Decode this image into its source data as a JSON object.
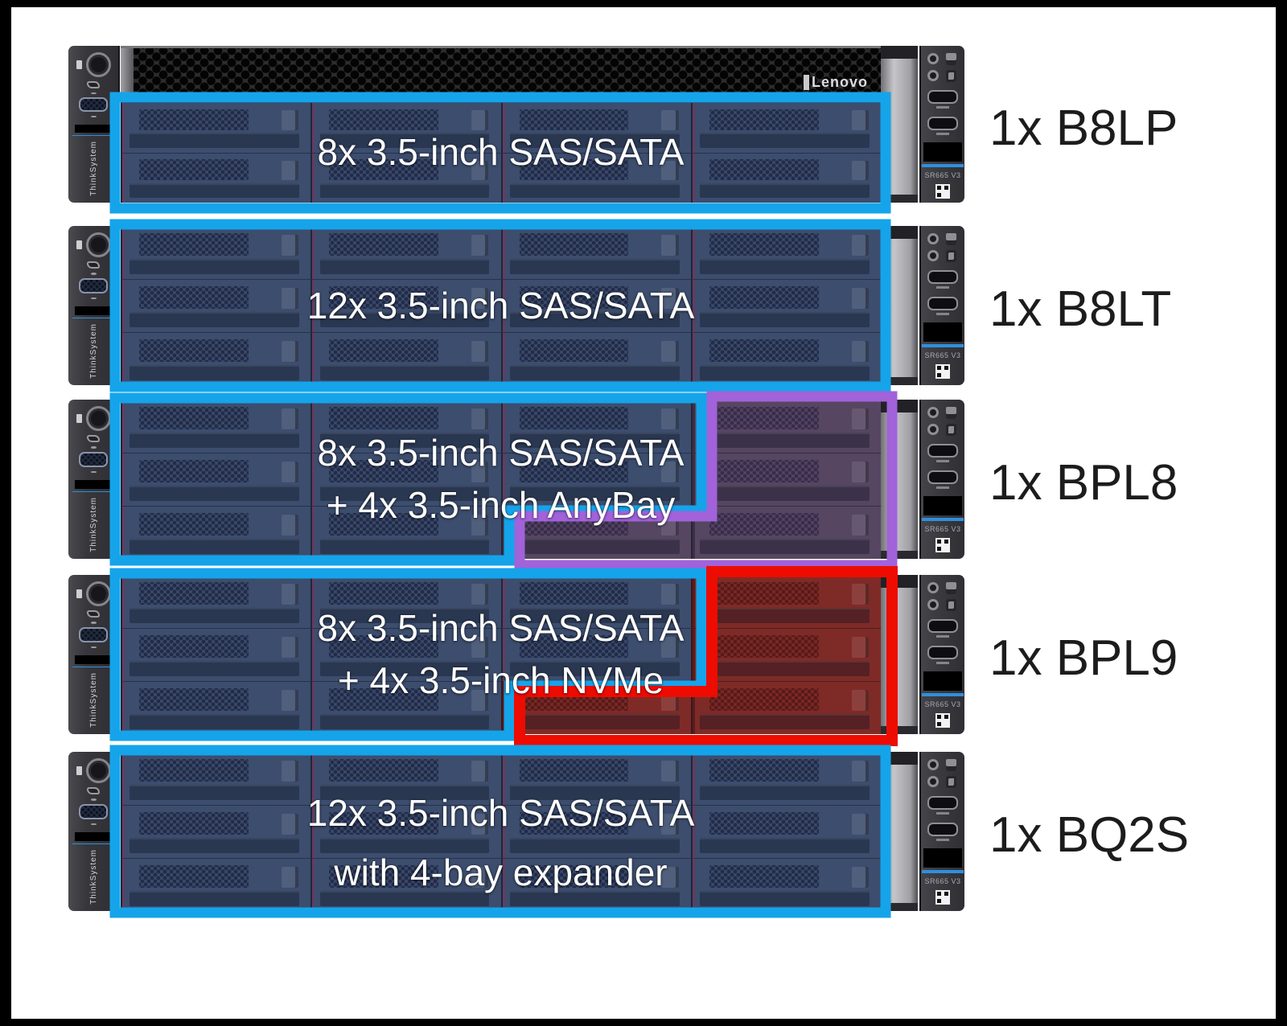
{
  "branding": {
    "logo": "Lenovo",
    "left_ear": "ThinkSystem",
    "right_ear_model": "SR665 V3"
  },
  "colors": {
    "highlight_blue": "#15a4ea",
    "highlight_purple": "#a162da",
    "highlight_red": "#ee0b00",
    "bay_blue": "#3c4d6e",
    "bay_anybay": "#564662",
    "bay_nvme": "#7e2b28"
  },
  "servers": [
    {
      "id": "b8lp",
      "label": "1x B8LP",
      "caption_lines": [
        "8x 3.5-inch SAS/SATA"
      ]
    },
    {
      "id": "b8lt",
      "label": "1x B8LT",
      "caption_lines": [
        "12x 3.5-inch SAS/SATA"
      ]
    },
    {
      "id": "bpl8",
      "label": "1x BPL8",
      "caption_lines": [
        "8x 3.5-inch SAS/SATA",
        "+ 4x 3.5-inch AnyBay"
      ]
    },
    {
      "id": "bpl9",
      "label": "1x BPL9",
      "caption_lines": [
        "8x 3.5-inch SAS/SATA",
        "+ 4x 3.5-inch NVMe"
      ]
    },
    {
      "id": "bq2s",
      "label": "1x BQ2S",
      "caption_lines": [
        "12x 3.5-inch SAS/SATA",
        "with 4-bay expander"
      ]
    }
  ]
}
